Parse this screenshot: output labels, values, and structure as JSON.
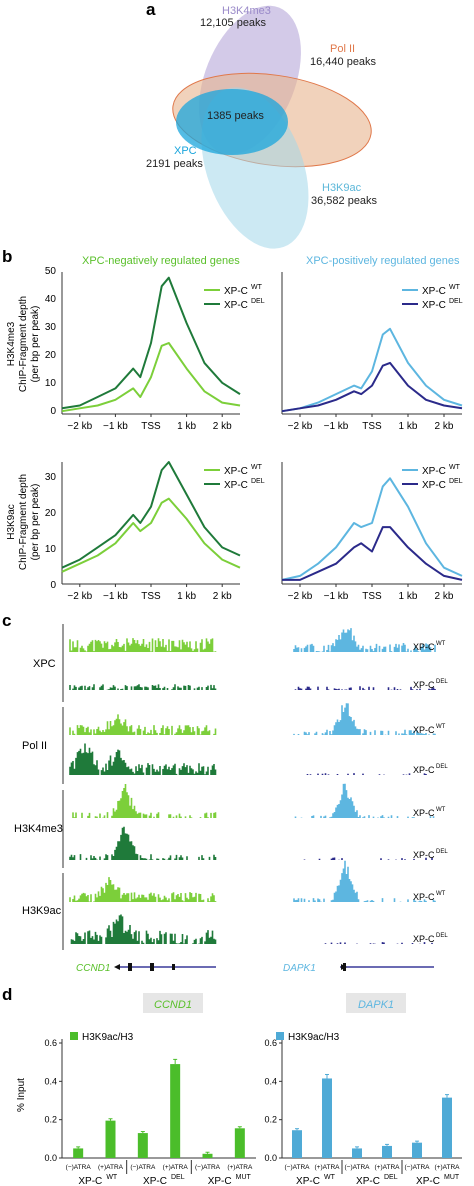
{
  "panel_a": {
    "letter": "a",
    "h3k4me3": {
      "name": "H3K4me3",
      "peaks": "12,105 peaks"
    },
    "pol2": {
      "name": "Pol II",
      "peaks": "16,440 peaks"
    },
    "xpc": {
      "name": "XPC",
      "peaks": "2191 peaks"
    },
    "h3k9ac": {
      "name": "H3K9ac",
      "peaks": "36,582 peaks"
    },
    "overlap": "1385 peaks"
  },
  "panel_b": {
    "letter": "b",
    "left_title": "XPC-negatively regulated genes",
    "right_title": "XPC-positively regulated genes",
    "ylabel_top": [
      "H3K4me3",
      "ChIP-Fragment depth",
      "(per bp per peak)"
    ],
    "ylabel_bottom": [
      "H3K9ac",
      "ChIP-Fragment depth",
      "(per bp per peak)"
    ],
    "xticks": [
      "−2 kb",
      "−1 kb",
      "TSS",
      "1 kb",
      "2 kb"
    ],
    "yticks": [
      "0",
      "10",
      "20",
      "30",
      "40",
      "50"
    ],
    "legend": [
      "XP-C",
      "WT",
      "XP-C",
      "DEL"
    ]
  },
  "panel_c": {
    "letter": "c",
    "rows": [
      "XPC",
      "Pol II",
      "H3K4me3",
      "H3K9ac"
    ],
    "wt": "XP-C",
    "wt_sup": "WT",
    "del": "XP-C",
    "del_sup": "DEL",
    "gene_left": "CCND1",
    "gene_right": "DAPK1"
  },
  "panel_d": {
    "letter": "d",
    "ylabel": "% Input",
    "legend": "H3K9ac/H3",
    "left_gene": "CCND1",
    "right_gene": "DAPK1",
    "conds": [
      "(−)ATRA",
      "(+)ATRA"
    ],
    "groups": [
      {
        "base": "XP-C",
        "sup": "WT"
      },
      {
        "base": "XP-C",
        "sup": "DEL"
      },
      {
        "base": "XP-C",
        "sup": "MUT"
      }
    ],
    "left_yticks": [
      "0.0",
      "0.2",
      "0.4",
      "0.6"
    ],
    "right_yticks": [
      "0.0",
      "0.2",
      "0.4",
      "0.6"
    ]
  },
  "colors": {
    "light_green": "#7ccf3a",
    "dark_green": "#1f7a3a",
    "light_blue": "#5db6e0",
    "dark_blue": "#2b2a8a"
  },
  "chart_data": [
    {
      "type": "line",
      "title": "XPC-negatively regulated genes",
      "ylabel": "H3K4me3 ChIP-Fragment depth (per bp per peak)",
      "x": [
        -2.5,
        -2,
        -1.5,
        -1,
        -0.5,
        -0.3,
        0,
        0.3,
        0.5,
        1,
        1.5,
        2,
        2.5
      ],
      "ylim": [
        0,
        50
      ],
      "series": [
        {
          "name": "XP-C WT",
          "values": [
            1,
            2,
            3,
            5,
            9,
            6,
            13,
            24,
            25,
            16,
            8,
            4,
            3
          ]
        },
        {
          "name": "XP-C DEL",
          "values": [
            2,
            3,
            6,
            9,
            16,
            13,
            25,
            45,
            48,
            32,
            18,
            11,
            7
          ]
        }
      ]
    },
    {
      "type": "line",
      "title": "XPC-positively regulated genes",
      "ylabel": "H3K4me3 ChIP-Fragment depth (per bp per peak)",
      "x": [
        -2.5,
        -2,
        -1.5,
        -1,
        -0.5,
        -0.3,
        0,
        0.3,
        0.5,
        1,
        1.5,
        2,
        2.5
      ],
      "ylim": [
        0,
        50
      ],
      "series": [
        {
          "name": "XP-C WT",
          "values": [
            1,
            2,
            4,
            7,
            10,
            9,
            15,
            28,
            30,
            18,
            10,
            5,
            3
          ]
        },
        {
          "name": "XP-C DEL",
          "values": [
            1,
            2,
            3,
            5,
            8,
            7,
            10,
            17,
            18,
            10,
            5,
            3,
            2
          ]
        }
      ]
    },
    {
      "type": "line",
      "title": "XPC-negatively regulated genes",
      "ylabel": "H3K9ac ChIP-Fragment depth (per bp per peak)",
      "x": [
        -2.5,
        -2,
        -1.5,
        -1,
        -0.5,
        -0.3,
        0,
        0.3,
        0.5,
        1,
        1.5,
        2,
        2.5
      ],
      "ylim": [
        0,
        30
      ],
      "series": [
        {
          "name": "XP-C WT",
          "values": [
            3,
            5,
            7,
            10,
            15,
            13,
            15,
            20,
            21,
            16,
            10,
            6,
            4
          ]
        },
        {
          "name": "XP-C DEL",
          "values": [
            4,
            6,
            9,
            12,
            17,
            15,
            19,
            28,
            30,
            22,
            14,
            9,
            7
          ]
        }
      ]
    },
    {
      "type": "line",
      "title": "XPC-positively regulated genes",
      "ylabel": "H3K9ac ChIP-Fragment depth (per bp per peak)",
      "x": [
        -2.5,
        -2,
        -1.5,
        -1,
        -0.5,
        -0.3,
        0,
        0.3,
        0.5,
        1,
        1.5,
        2,
        2.5
      ],
      "ylim": [
        0,
        30
      ],
      "series": [
        {
          "name": "XP-C WT",
          "values": [
            1,
            2,
            5,
            9,
            15,
            14,
            15,
            24,
            26,
            19,
            10,
            4,
            2
          ]
        },
        {
          "name": "XP-C DEL",
          "values": [
            1,
            1,
            3,
            5,
            9,
            10,
            8,
            14,
            14,
            9,
            5,
            2,
            1
          ]
        }
      ]
    },
    {
      "type": "bar",
      "title": "CCND1",
      "ylabel": "% Input",
      "categories": [
        "WT (−)ATRA",
        "WT (+)ATRA",
        "DEL (−)ATRA",
        "DEL (+)ATRA",
        "MUT (−)ATRA",
        "MUT (+)ATRA"
      ],
      "values": [
        0.05,
        0.195,
        0.13,
        0.49,
        0.022,
        0.155
      ],
      "ylim": [
        0,
        0.6
      ]
    },
    {
      "type": "bar",
      "title": "DAPK1",
      "ylabel": "% Input",
      "categories": [
        "WT (−)ATRA",
        "WT (+)ATRA",
        "DEL (−)ATRA",
        "DEL (+)ATRA",
        "MUT (−)ATRA",
        "MUT (+)ATRA"
      ],
      "values": [
        0.145,
        0.415,
        0.05,
        0.063,
        0.08,
        0.315
      ],
      "ylim": [
        0,
        0.6
      ]
    }
  ]
}
